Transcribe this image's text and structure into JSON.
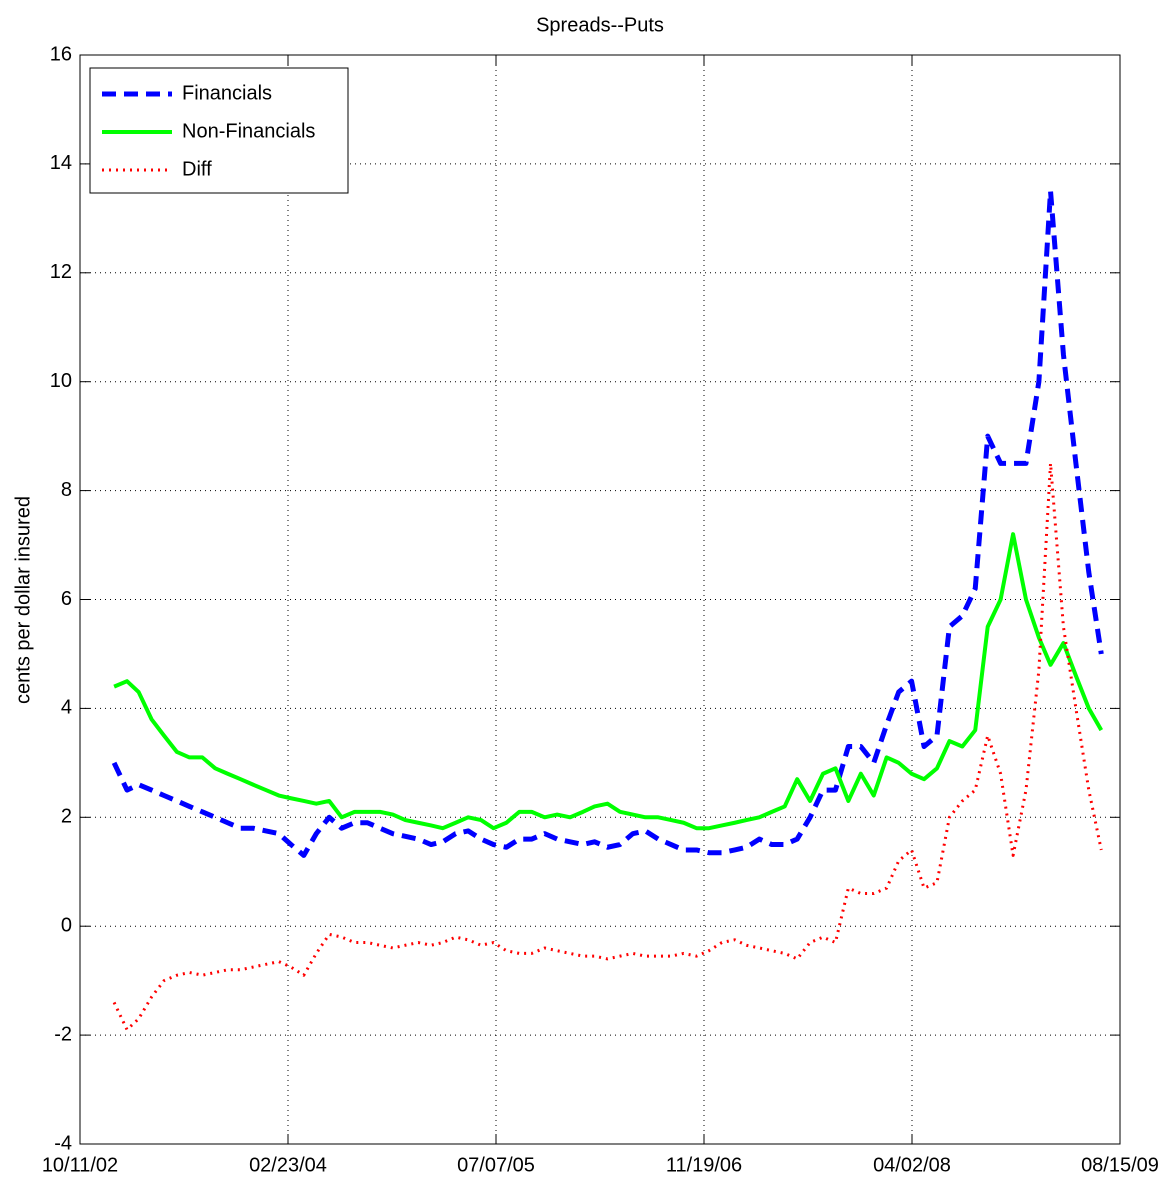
{
  "chart_data": {
    "type": "line",
    "title": "Spreads--Puts",
    "y_label": "cents per dollar insured",
    "x": [
      "01/01/03",
      "02/01/03",
      "03/01/03",
      "04/01/03",
      "05/01/03",
      "06/01/03",
      "07/01/03",
      "08/01/03",
      "09/01/03",
      "10/01/03",
      "11/01/03",
      "12/01/03",
      "01/01/04",
      "02/01/04",
      "03/01/04",
      "04/01/04",
      "05/01/04",
      "06/01/04",
      "07/01/04",
      "08/01/04",
      "09/01/04",
      "10/01/04",
      "11/01/04",
      "12/01/04",
      "01/01/05",
      "02/01/05",
      "03/01/05",
      "04/01/05",
      "05/01/05",
      "06/01/05",
      "07/01/05",
      "08/01/05",
      "09/01/05",
      "10/01/05",
      "11/01/05",
      "12/01/05",
      "01/01/06",
      "02/01/06",
      "03/01/06",
      "04/01/06",
      "05/01/06",
      "06/01/06",
      "07/01/06",
      "08/01/06",
      "09/01/06",
      "10/01/06",
      "11/01/06",
      "12/01/06",
      "01/01/07",
      "02/01/07",
      "03/01/07",
      "04/01/07",
      "05/01/07",
      "06/01/07",
      "07/01/07",
      "08/01/07",
      "09/01/07",
      "10/01/07",
      "11/01/07",
      "12/01/07",
      "01/01/08",
      "02/01/08",
      "03/01/08",
      "04/01/08",
      "05/01/08",
      "06/01/08",
      "07/01/08",
      "08/01/08",
      "09/01/08",
      "10/01/08",
      "11/01/08",
      "12/01/08",
      "01/01/09",
      "02/01/09",
      "03/01/09",
      "04/01/09",
      "05/01/09",
      "06/01/09",
      "07/01/09"
    ],
    "series": [
      {
        "name": "Financials",
        "color": "#0000ff",
        "style": "dashed",
        "values": [
          3.0,
          2.5,
          2.6,
          2.5,
          2.4,
          2.3,
          2.2,
          2.1,
          2.0,
          1.9,
          1.8,
          1.8,
          1.75,
          1.7,
          1.5,
          1.3,
          1.7,
          2.0,
          1.8,
          1.9,
          1.9,
          1.8,
          1.7,
          1.65,
          1.6,
          1.5,
          1.55,
          1.7,
          1.75,
          1.6,
          1.5,
          1.45,
          1.6,
          1.6,
          1.7,
          1.6,
          1.55,
          1.5,
          1.55,
          1.45,
          1.5,
          1.7,
          1.75,
          1.6,
          1.5,
          1.4,
          1.4,
          1.35,
          1.35,
          1.4,
          1.45,
          1.6,
          1.5,
          1.5,
          1.6,
          2.0,
          2.5,
          2.5,
          3.3,
          3.3,
          3.0,
          3.7,
          4.3,
          4.5,
          3.3,
          3.5,
          5.5,
          5.7,
          6.2,
          9.0,
          8.5,
          8.5,
          8.5,
          10.0,
          13.5,
          10.5,
          8.5,
          6.5,
          5.0
        ]
      },
      {
        "name": "Non-Financials",
        "color": "#00ff00",
        "style": "solid",
        "values": [
          4.4,
          4.5,
          4.3,
          3.8,
          3.5,
          3.2,
          3.1,
          3.1,
          2.9,
          2.8,
          2.7,
          2.6,
          2.5,
          2.4,
          2.35,
          2.3,
          2.25,
          2.3,
          2.0,
          2.1,
          2.1,
          2.1,
          2.05,
          1.95,
          1.9,
          1.85,
          1.8,
          1.9,
          2.0,
          1.95,
          1.8,
          1.9,
          2.1,
          2.1,
          2.0,
          2.05,
          2.0,
          2.1,
          2.2,
          2.25,
          2.1,
          2.05,
          2.0,
          2.0,
          1.95,
          1.9,
          1.8,
          1.8,
          1.85,
          1.9,
          1.95,
          2.0,
          2.1,
          2.2,
          2.7,
          2.3,
          2.8,
          2.9,
          2.3,
          2.8,
          2.4,
          3.1,
          3.0,
          2.8,
          2.7,
          2.9,
          3.4,
          3.3,
          3.6,
          5.5,
          6.0,
          7.2,
          6.0,
          5.3,
          4.8,
          5.2,
          4.6,
          4.0,
          3.6
        ]
      },
      {
        "name": "Diff",
        "color": "#ff0000",
        "style": "dotted",
        "values": [
          -1.4,
          -1.9,
          -1.7,
          -1.3,
          -1.0,
          -0.9,
          -0.85,
          -0.9,
          -0.85,
          -0.8,
          -0.8,
          -0.75,
          -0.7,
          -0.65,
          -0.75,
          -0.9,
          -0.5,
          -0.15,
          -0.2,
          -0.3,
          -0.3,
          -0.35,
          -0.4,
          -0.35,
          -0.3,
          -0.35,
          -0.3,
          -0.2,
          -0.25,
          -0.35,
          -0.3,
          -0.45,
          -0.5,
          -0.5,
          -0.4,
          -0.45,
          -0.5,
          -0.55,
          -0.55,
          -0.6,
          -0.55,
          -0.5,
          -0.55,
          -0.55,
          -0.55,
          -0.5,
          -0.55,
          -0.45,
          -0.3,
          -0.25,
          -0.35,
          -0.4,
          -0.45,
          -0.5,
          -0.6,
          -0.3,
          -0.2,
          -0.3,
          0.7,
          0.6,
          0.6,
          0.7,
          1.2,
          1.4,
          0.7,
          0.8,
          2.0,
          2.3,
          2.5,
          3.5,
          2.8,
          1.3,
          2.5,
          4.7,
          8.5,
          5.5,
          4.0,
          2.5,
          1.4
        ]
      }
    ],
    "xlim": [
      "10/11/02",
      "08/15/09"
    ],
    "xticks": [
      "10/11/02",
      "02/23/04",
      "07/07/05",
      "11/19/06",
      "04/02/08",
      "08/15/09"
    ],
    "ylim": [
      -4,
      16
    ],
    "yticks": [
      -4,
      -2,
      0,
      2,
      4,
      6,
      8,
      10,
      12,
      14,
      16
    ],
    "grid": true,
    "legend": "upper left"
  }
}
